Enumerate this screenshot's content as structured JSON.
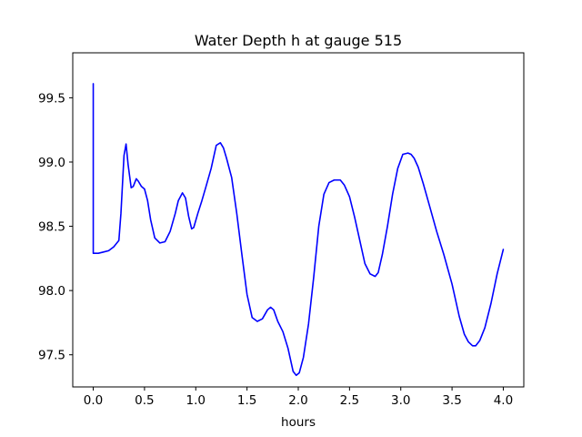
{
  "chart_data": {
    "type": "line",
    "title": "Water Depth h at gauge 515",
    "xlabel": "hours",
    "ylabel": "",
    "xlim": [
      -0.2,
      4.2
    ],
    "ylim": [
      97.25,
      99.85
    ],
    "xticks": [
      0.0,
      0.5,
      1.0,
      1.5,
      2.0,
      2.5,
      3.0,
      3.5,
      4.0
    ],
    "xtick_labels": [
      "0.0",
      "0.5",
      "1.0",
      "1.5",
      "2.0",
      "2.5",
      "3.0",
      "3.5",
      "4.0"
    ],
    "yticks": [
      97.5,
      98.0,
      98.5,
      99.0,
      99.5
    ],
    "ytick_labels": [
      "97.5",
      "98.0",
      "98.5",
      "99.0",
      "99.5"
    ],
    "grid": false,
    "line_color": "#0000ff",
    "series": [
      {
        "x": [
          0.0,
          0.0,
          0.0,
          0.05,
          0.1,
          0.15,
          0.2,
          0.25,
          0.27,
          0.3,
          0.32,
          0.34,
          0.37,
          0.39,
          0.42,
          0.44,
          0.47,
          0.5,
          0.53,
          0.56,
          0.6,
          0.65,
          0.7,
          0.75,
          0.8,
          0.83,
          0.87,
          0.9,
          0.93,
          0.96,
          0.98,
          1.02,
          1.06,
          1.1,
          1.15,
          1.2,
          1.24,
          1.27,
          1.3,
          1.35,
          1.4,
          1.45,
          1.5,
          1.55,
          1.6,
          1.65,
          1.7,
          1.73,
          1.76,
          1.8,
          1.85,
          1.9,
          1.95,
          1.98,
          2.01,
          2.05,
          2.1,
          2.15,
          2.2,
          2.25,
          2.3,
          2.35,
          2.38,
          2.41,
          2.45,
          2.5,
          2.55,
          2.6,
          2.65,
          2.7,
          2.75,
          2.78,
          2.82,
          2.87,
          2.92,
          2.97,
          3.02,
          3.07,
          3.1,
          3.13,
          3.17,
          3.22,
          3.28,
          3.35,
          3.42,
          3.5,
          3.57,
          3.62,
          3.66,
          3.7,
          3.73,
          3.77,
          3.82,
          3.88,
          3.94,
          4.0
        ],
        "y": [
          98.29,
          99.61,
          98.29,
          98.29,
          98.3,
          98.31,
          98.34,
          98.39,
          98.6,
          99.05,
          99.14,
          98.98,
          98.8,
          98.81,
          98.87,
          98.85,
          98.81,
          98.79,
          98.7,
          98.55,
          98.41,
          98.37,
          98.38,
          98.46,
          98.6,
          98.7,
          98.76,
          98.72,
          98.58,
          98.48,
          98.49,
          98.6,
          98.7,
          98.81,
          98.95,
          99.13,
          99.15,
          99.11,
          99.03,
          98.88,
          98.6,
          98.28,
          97.97,
          97.79,
          97.76,
          97.78,
          97.85,
          97.87,
          97.85,
          97.76,
          97.68,
          97.55,
          97.37,
          97.34,
          97.36,
          97.48,
          97.74,
          98.1,
          98.5,
          98.75,
          98.84,
          98.86,
          98.86,
          98.86,
          98.82,
          98.73,
          98.57,
          98.39,
          98.21,
          98.13,
          98.11,
          98.14,
          98.28,
          98.5,
          98.75,
          98.95,
          99.06,
          99.07,
          99.06,
          99.03,
          98.96,
          98.83,
          98.66,
          98.46,
          98.28,
          98.05,
          97.8,
          97.66,
          97.6,
          97.57,
          97.57,
          97.61,
          97.71,
          97.9,
          98.13,
          98.32
        ]
      }
    ]
  }
}
